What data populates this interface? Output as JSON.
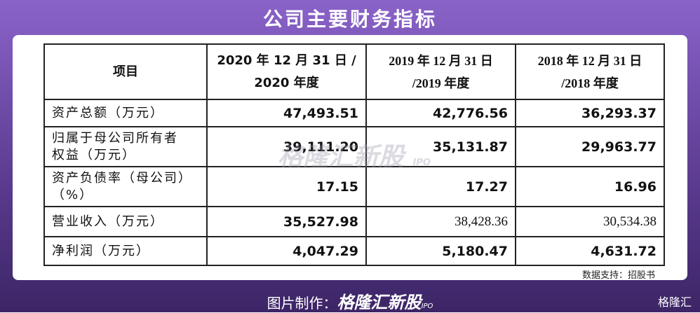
{
  "header": {
    "title": "公司主要财务指标"
  },
  "table": {
    "columns": [
      "项目",
      "2020 年 12 月 31 日 /\n2020 年度",
      "2019 年 12 月 31 日\n/2019 年度",
      "2018 年 12 月 31 日\n/2018 年度"
    ],
    "rows": [
      [
        "资产总额（万元）",
        "47,493.51",
        "42,776.56",
        "36,293.37"
      ],
      [
        "归属于母公司所有者\n权益（万元）",
        "39,111.20",
        "35,131.87",
        "29,963.77"
      ],
      [
        "资产负债率（母公司）\n（%）",
        "17.15",
        "17.27",
        "16.96"
      ],
      [
        "营业收入（万元）",
        "35,527.98",
        "38,428.36",
        "30,534.38"
      ],
      [
        "净利润（万元）",
        "4,047.29",
        "5,180.47",
        "4,631.72"
      ]
    ]
  },
  "source": "数据支持：招股书",
  "watermark": {
    "brand": "格隆汇新股",
    "tag": "IPO"
  },
  "footer": {
    "label": "图片制作：",
    "brand": "格隆汇新股",
    "tag": "IPO",
    "logo": "格隆汇"
  }
}
